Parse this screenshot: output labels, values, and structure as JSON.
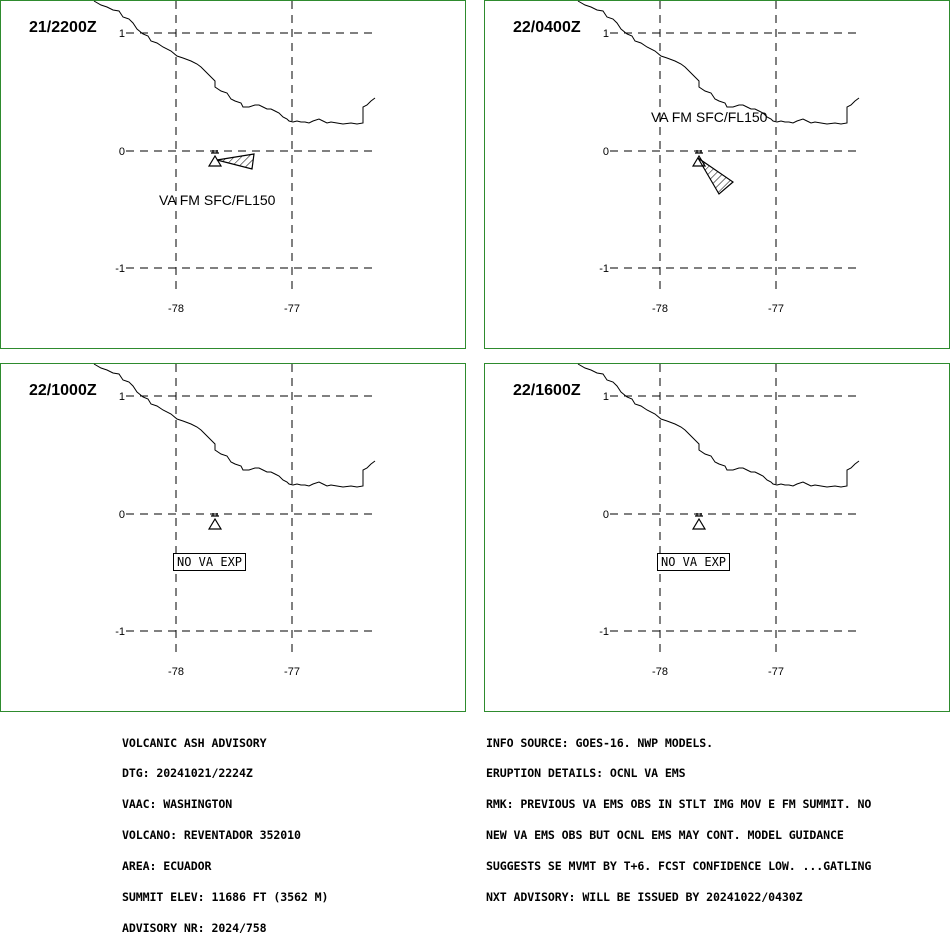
{
  "panels": [
    {
      "time": "21/2200Z",
      "va_label": "VA FM SFC/FL150",
      "no_va_exp": ""
    },
    {
      "time": "22/0400Z",
      "va_label": "VA FM SFC/FL150",
      "no_va_exp": ""
    },
    {
      "time": "22/1000Z",
      "va_label": "",
      "no_va_exp": "NO VA EXP"
    },
    {
      "time": "22/1600Z",
      "va_label": "",
      "no_va_exp": "NO VA EXP"
    }
  ],
  "axes": {
    "lat_ticks": [
      "1",
      "0",
      "-1"
    ],
    "lon_ticks": [
      "-78",
      "-77"
    ]
  },
  "advisory_left": [
    "VOLCANIC ASH ADVISORY",
    "DTG: 20241021/2224Z",
    "VAAC: WASHINGTON",
    "VOLCANO: REVENTADOR 352010",
    "AREA: ECUADOR",
    "SUMMIT ELEV: 11686 FT (3562 M)",
    "ADVISORY NR: 2024/758"
  ],
  "advisory_right": [
    "INFO SOURCE: GOES-16. NWP MODELS.",
    "ERUPTION DETAILS: OCNL VA EMS",
    "RMK: PREVIOUS VA EMS OBS IN STLT IMG MOV E FM SUMMIT. NO",
    "NEW VA EMS OBS BUT OCNL EMS MAY CONT. MODEL GUIDANCE",
    "SUGGESTS SE MVMT BY T+6. FCST CONFIDENCE LOW. ...GATLING",
    "NXT ADVISORY: WILL BE ISSUED BY 20241022/0430Z"
  ],
  "colors": {
    "panel_border": "#2e8b2e",
    "lines": "#000000"
  },
  "icons": {
    "volcano": "volcano-icon",
    "ash_cloud": "ash-cloud-polygon"
  }
}
